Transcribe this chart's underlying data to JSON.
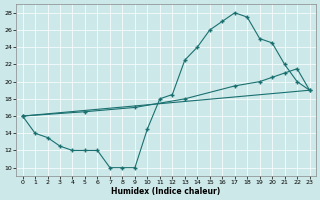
{
  "xlabel": "Humidex (Indice chaleur)",
  "xlim": [
    -0.5,
    23.5
  ],
  "ylim": [
    9,
    29
  ],
  "yticks": [
    10,
    12,
    14,
    16,
    18,
    20,
    22,
    24,
    26,
    28
  ],
  "xticks": [
    0,
    1,
    2,
    3,
    4,
    5,
    6,
    7,
    8,
    9,
    10,
    11,
    12,
    13,
    14,
    15,
    16,
    17,
    18,
    19,
    20,
    21,
    22,
    23
  ],
  "bg_color": "#cde8e8",
  "line_color": "#1a7070",
  "line1_x": [
    0,
    1,
    2,
    3,
    4,
    5,
    6,
    7,
    8,
    9,
    10,
    11,
    12,
    13,
    14,
    15,
    16,
    17,
    18,
    19,
    20,
    21,
    22,
    23
  ],
  "line1_y": [
    16,
    14,
    13.5,
    12.5,
    12,
    12,
    12,
    10,
    10,
    10,
    14.5,
    18,
    18.5,
    22.5,
    24,
    26,
    27,
    28,
    27.5,
    25,
    24.5,
    22,
    20,
    19
  ],
  "line2_x": [
    0,
    5,
    9,
    13,
    17,
    19,
    20,
    21,
    22,
    23
  ],
  "line2_y": [
    16,
    16.5,
    17,
    18,
    19.5,
    20,
    20.5,
    21,
    21.5,
    19
  ],
  "line3_x": [
    0,
    23
  ],
  "line3_y": [
    16,
    19
  ]
}
